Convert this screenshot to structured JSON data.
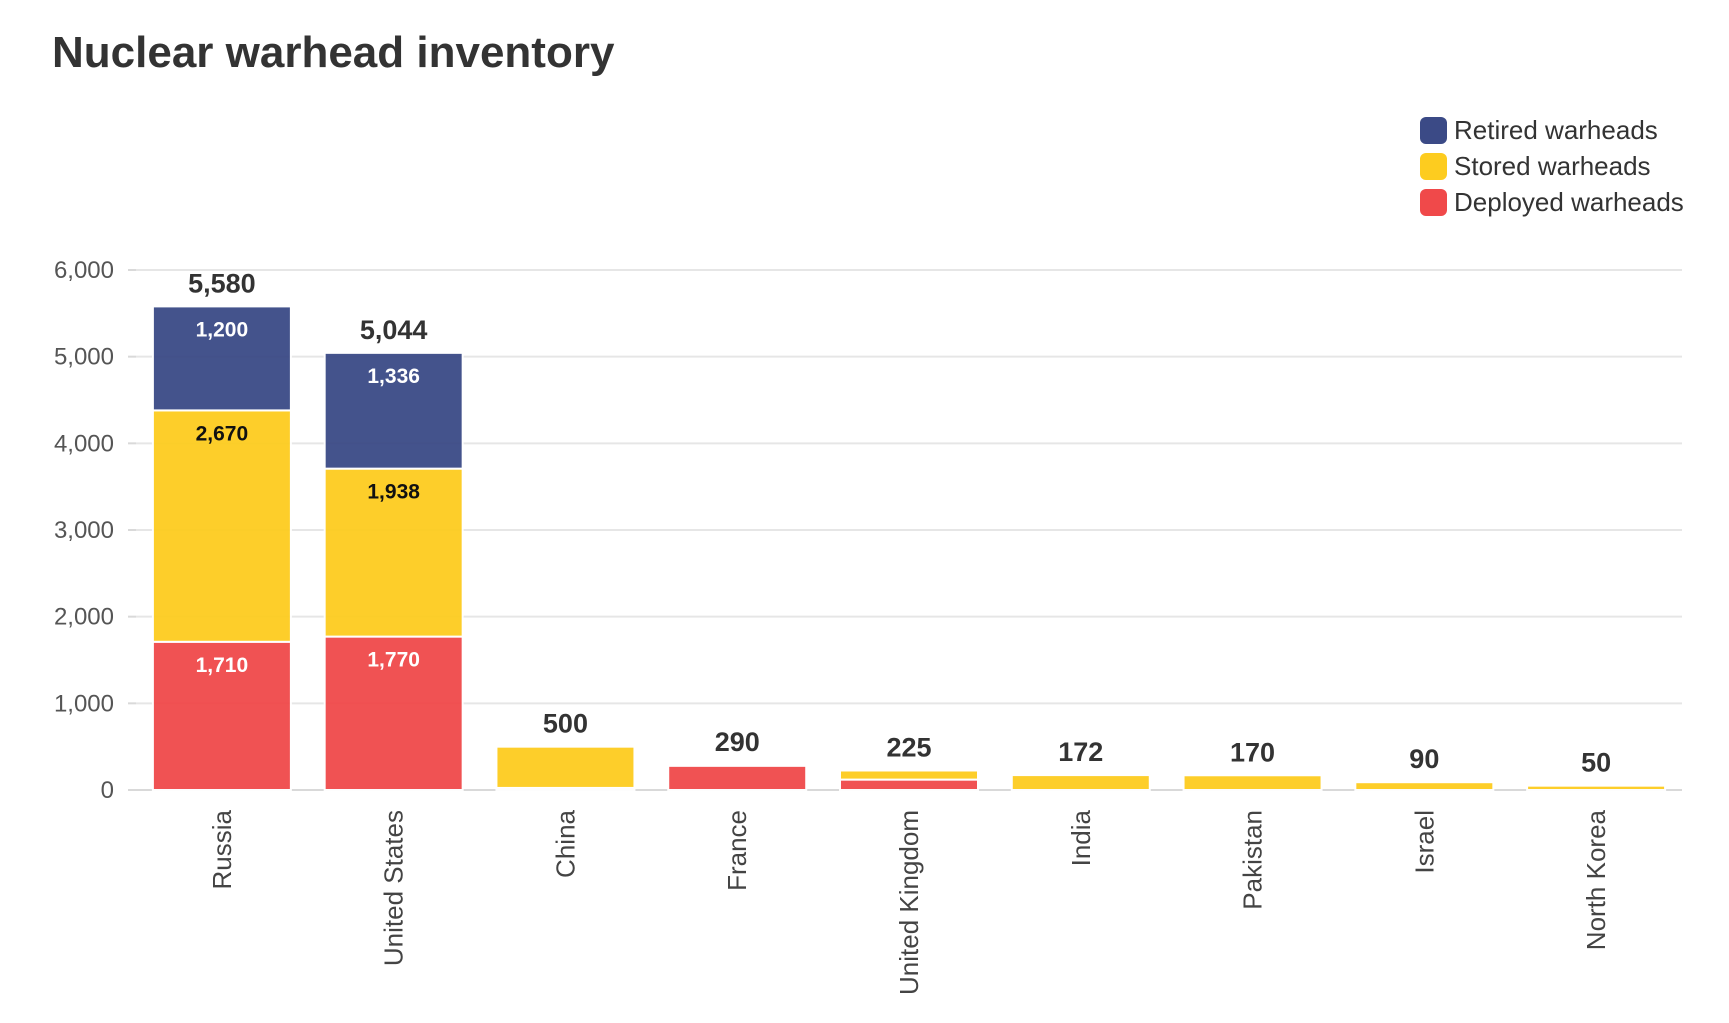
{
  "title": "Nuclear warhead inventory",
  "colors": {
    "retired": "#3b4a86",
    "stored": "#fdcc1f",
    "deployed": "#f0494a",
    "grid": "#e6e6e6"
  },
  "chart_data": {
    "type": "bar",
    "stacked": true,
    "title": "Nuclear warhead inventory",
    "xlabel": "",
    "ylabel": "",
    "ylim": [
      0,
      6000
    ],
    "yticks": [
      "0",
      "1,000",
      "2,000",
      "3,000",
      "4,000",
      "5,000",
      "6,000"
    ],
    "ytick_values": [
      0,
      1000,
      2000,
      3000,
      4000,
      5000,
      6000
    ],
    "grid": true,
    "legend_position": "top-right",
    "categories": [
      "Russia",
      "United States",
      "China",
      "France",
      "United Kingdom",
      "India",
      "Pakistan",
      "Israel",
      "North Korea"
    ],
    "series": [
      {
        "name": "Deployed warheads",
        "color": "#f0494a",
        "values": [
          1710,
          1770,
          24,
          280,
          120,
          0,
          0,
          0,
          0
        ],
        "labels": [
          "1,710",
          "1,770",
          "",
          "",
          "",
          "",
          "",
          "",
          ""
        ]
      },
      {
        "name": "Stored warheads",
        "color": "#fdcc1f",
        "values": [
          2670,
          1938,
          476,
          10,
          105,
          172,
          170,
          90,
          50
        ],
        "labels": [
          "2,670",
          "1,938",
          "",
          "",
          "",
          "",
          "",
          "",
          ""
        ]
      },
      {
        "name": "Retired warheads",
        "color": "#3b4a86",
        "values": [
          1200,
          1336,
          0,
          0,
          0,
          0,
          0,
          0,
          0
        ],
        "labels": [
          "1,200",
          "1,336",
          "",
          "",
          "",
          "",
          "",
          "",
          ""
        ]
      }
    ],
    "totals": [
      5580,
      5044,
      500,
      290,
      225,
      172,
      170,
      90,
      50
    ],
    "total_labels": [
      "5,580",
      "5,044",
      "500",
      "290",
      "225",
      "172",
      "170",
      "90",
      "50"
    ]
  },
  "legend": [
    {
      "label": "Retired warheads",
      "color": "#3b4a86"
    },
    {
      "label": "Stored warheads",
      "color": "#fdcc1f"
    },
    {
      "label": "Deployed warheads",
      "color": "#f0494a"
    }
  ]
}
